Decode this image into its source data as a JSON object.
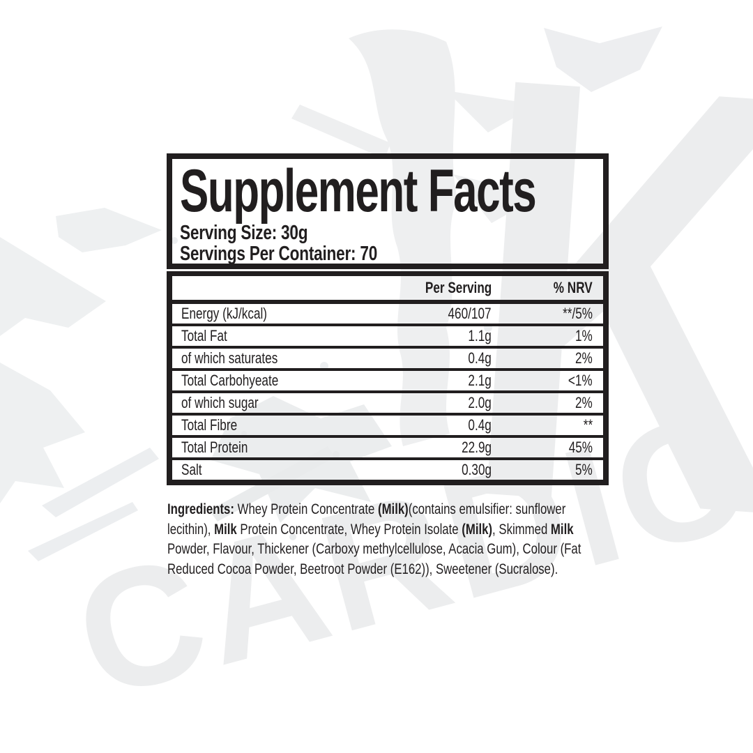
{
  "label": {
    "title": "Supplement Facts",
    "serving_size": "Serving Size: 30g",
    "servings_per_container": "Servings Per Container: 70"
  },
  "table": {
    "headers": {
      "per_serving": "Per Serving",
      "nrv": "% NRV"
    },
    "rows": [
      {
        "name": "Energy (kJ/kcal)",
        "per_serving": "460/107",
        "nrv": "**/5%"
      },
      {
        "name": "Total Fat",
        "per_serving": "1.1g",
        "nrv": "1%"
      },
      {
        "name": "of which saturates",
        "per_serving": "0.4g",
        "nrv": "2%"
      },
      {
        "name": "Total Carbohyeate",
        "per_serving": "2.1g",
        "nrv": "<1%"
      },
      {
        "name": "of which sugar",
        "per_serving": "2.0g",
        "nrv": "2%"
      },
      {
        "name": "Total Fibre",
        "per_serving": "0.4g",
        "nrv": "**"
      },
      {
        "name": "Total Protein",
        "per_serving": "22.9g",
        "nrv": "45%"
      },
      {
        "name": "Salt",
        "per_serving": "0.30g",
        "nrv": "5%"
      }
    ]
  },
  "ingredients": {
    "segments": [
      {
        "text": "Ingredients:",
        "bold": true
      },
      {
        "text": " Whey Protein Concentrate ",
        "bold": false
      },
      {
        "text": "(Milk)",
        "bold": true
      },
      {
        "text": "(contains emulsifier: sunflower lecithin), ",
        "bold": false
      },
      {
        "text": "Milk",
        "bold": true
      },
      {
        "text": " Protein Concentrate, Whey Protein Isolate ",
        "bold": false
      },
      {
        "text": "(Milk)",
        "bold": true
      },
      {
        "text": ", Skimmed ",
        "bold": false
      },
      {
        "text": "Milk",
        "bold": true
      },
      {
        "text": " Powder, Flavour, Thickener (Carboxy methylcellulose, Acacia Gum), Colour (Fat Reduced Cocoa Powder, Beetroot Powder (E162)), Sweetener (Sucralose).",
        "bold": false
      }
    ]
  },
  "watermark": {
    "brand_text": "CARDIO",
    "brand_letter": "K",
    "color": "#ecedee"
  },
  "colors": {
    "ink": "#211e1f",
    "background": "#ffffff",
    "watermark_light": "#ecedee",
    "watermark_speck": "#e7e9ea"
  }
}
